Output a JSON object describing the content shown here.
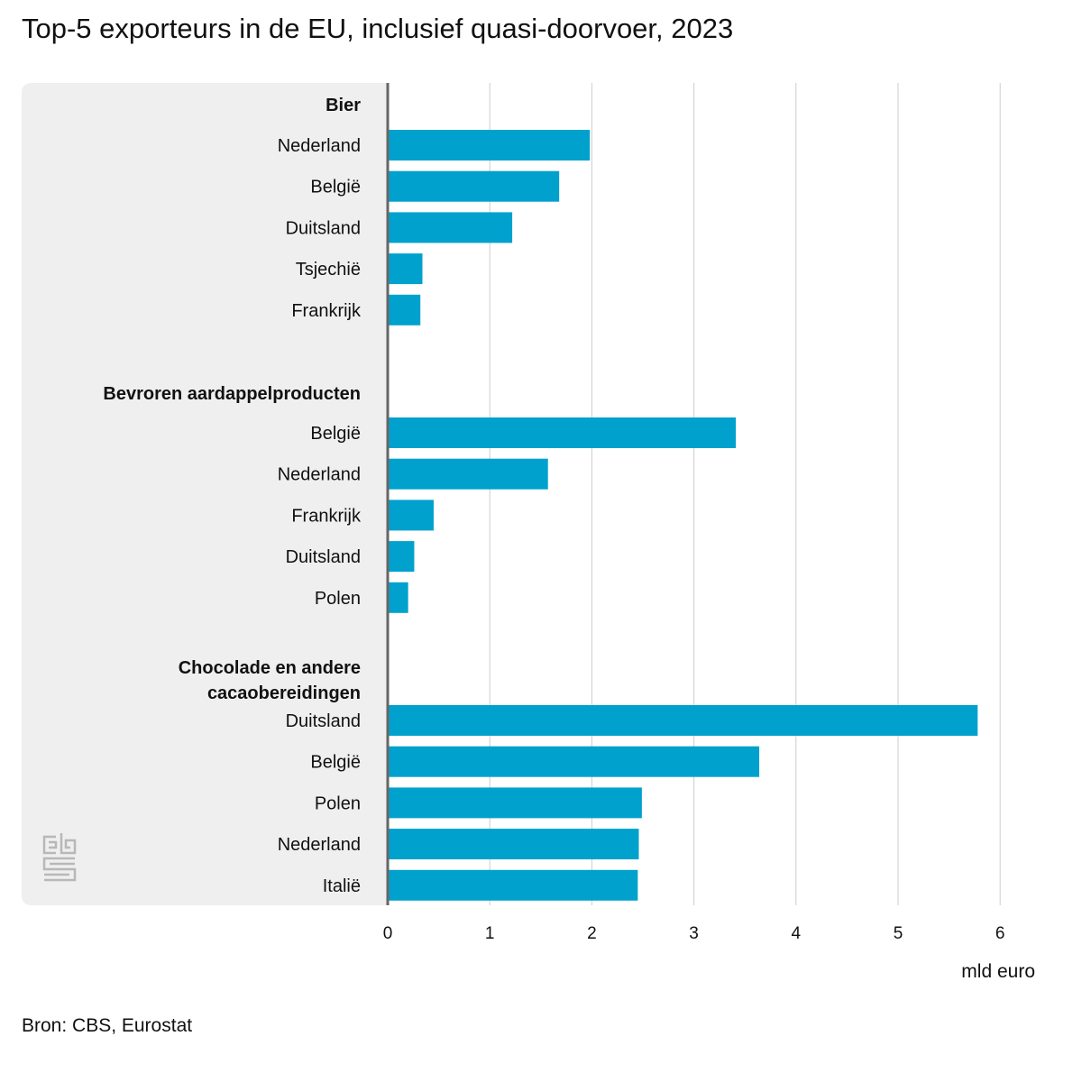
{
  "title": "Top-5 exporteurs in de EU, inclusief quasi-doorvoer, 2023",
  "source": "Bron: CBS, Eurostat",
  "logo": "cbs-logo",
  "colors": {
    "bar": "#00a1cd",
    "panel": "#efefef",
    "grid": "#cccccc",
    "axis": "#666666",
    "text": "#111111"
  },
  "chart_data": {
    "type": "bar",
    "orientation": "horizontal",
    "xlabel": "mld euro",
    "xlim": [
      0,
      6
    ],
    "xticks": [
      "0",
      "1",
      "2",
      "3",
      "4",
      "5",
      "6"
    ],
    "grid": true,
    "groups": [
      {
        "name": "Bier",
        "categories": [
          "Nederland",
          "België",
          "Duitsland",
          "Tsjechië",
          "Frankrijk"
        ],
        "values": [
          1.98,
          1.68,
          1.22,
          0.34,
          0.32
        ]
      },
      {
        "name": "Bevroren aardappelproducten",
        "categories": [
          "België",
          "Nederland",
          "Frankrijk",
          "Duitsland",
          "Polen"
        ],
        "values": [
          3.41,
          1.57,
          0.45,
          0.26,
          0.2
        ]
      },
      {
        "name": "Chocolade en andere cacaobereidingen",
        "name_lines": [
          "Chocolade en andere",
          "cacaobereidingen"
        ],
        "categories": [
          "Duitsland",
          "België",
          "Polen",
          "Nederland",
          "Italië"
        ],
        "values": [
          5.78,
          3.64,
          2.49,
          2.46,
          2.45
        ]
      }
    ]
  }
}
